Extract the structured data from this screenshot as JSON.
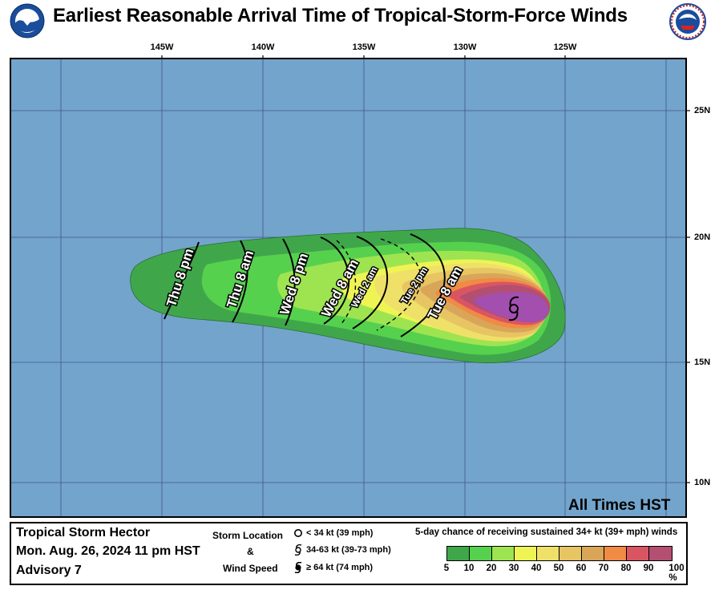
{
  "title": "Earliest Reasonable Arrival Time of Tropical-Storm-Force Winds",
  "logos": {
    "left": "NOAA",
    "right": "NATIONAL WEATHER SERVICE"
  },
  "lon_labels": [
    "145W",
    "140W",
    "135W",
    "130W",
    "125W"
  ],
  "lat_labels": [
    "25N",
    "20N",
    "15N",
    "10N"
  ],
  "time_note": "All Times HST",
  "arrival_labels": [
    {
      "text": "Thu 8 pm"
    },
    {
      "text": "Thu 8 am"
    },
    {
      "text": "Wed 8 pm"
    },
    {
      "text": "Wed 8 am"
    },
    {
      "text": "Wed 2 am"
    },
    {
      "text": "Tue 2 pm"
    },
    {
      "text": "Tue 8 am"
    }
  ],
  "storm": {
    "name": "Tropical Storm Hector",
    "time": "Mon. Aug. 26, 2024  11 pm HST",
    "advisory": "Advisory 7"
  },
  "legend_mid": {
    "location": "Storm Location",
    "amp": "&",
    "wind": "Wind Speed",
    "sym1": "< 34 kt (39 mph)",
    "sym2": "34-63 kt (39-73 mph)",
    "sym3": "≥ 64 kt (74 mph)"
  },
  "probability": {
    "title": "5-day chance of receiving sustained 34+ kt (39+ mph) winds",
    "thresholds": [
      "5",
      "10",
      "20",
      "30",
      "40",
      "50",
      "60",
      "70",
      "80",
      "90",
      "100 %"
    ],
    "colors": [
      "#3fa74a",
      "#56d14e",
      "#9ee451",
      "#eef454",
      "#efe06a",
      "#e6c562",
      "#d9a659",
      "#f08a44",
      "#da5562",
      "#b34f70",
      "#a34fb0"
    ]
  },
  "colors": {
    "ocean": "#73a4cc",
    "grid": "#43548a",
    "storm_symbol": "#000000"
  }
}
